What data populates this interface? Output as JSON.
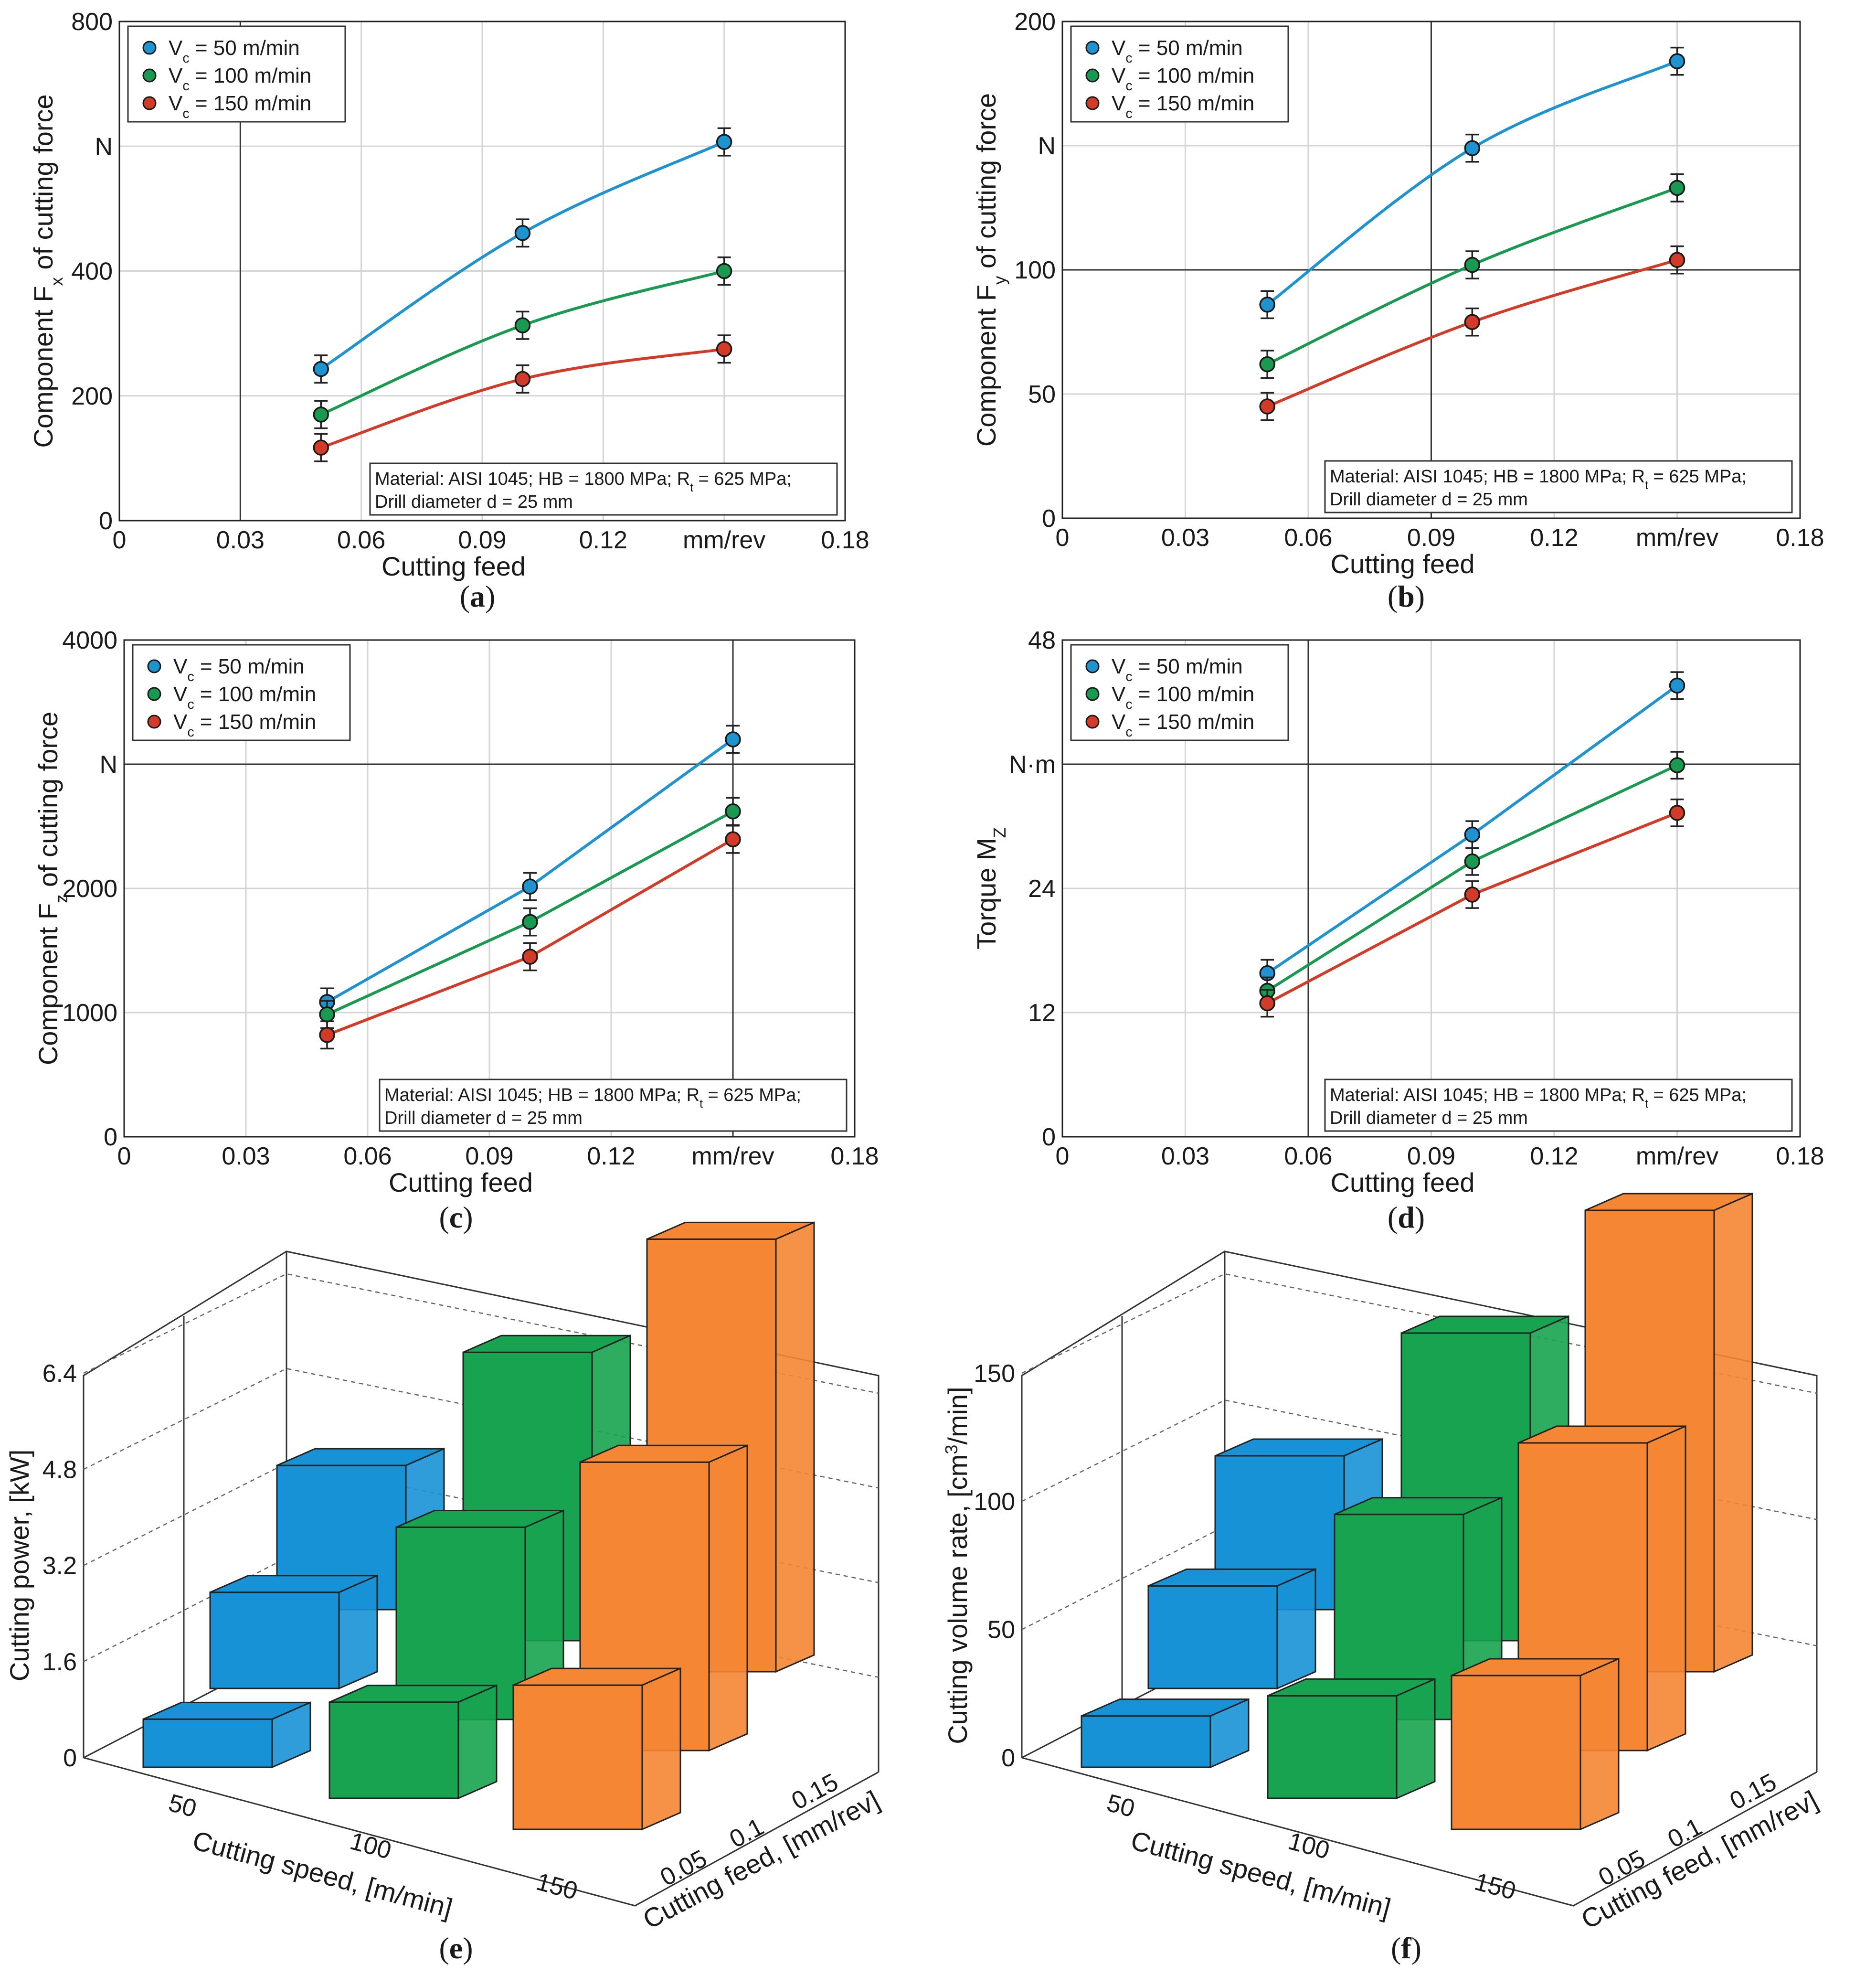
{
  "panels": [
    {
      "id": "a",
      "label": "a"
    },
    {
      "id": "b",
      "label": "b"
    },
    {
      "id": "c",
      "label": "c"
    },
    {
      "id": "d",
      "label": "d"
    },
    {
      "id": "e",
      "label": "e"
    },
    {
      "id": "f",
      "label": "f"
    }
  ],
  "legend": [
    "Vc = 50 m/min",
    "Vc = 100 m/min",
    "Vc = 150 m/min"
  ],
  "series_colors": [
    "#1f93cf",
    "#1a9a50",
    "#d23b27"
  ],
  "bar_colors": [
    "#1792d6",
    "#17a34f",
    "#f58634"
  ],
  "note_line1": "Material: AISI 1045; HB = 1800 MPa; Rt = 625 MPa;",
  "note_line2": "Drill diameter d = 25 mm",
  "chart_data": [
    {
      "panel": "a",
      "type": "line",
      "xlabel": "Cutting feed",
      "ylabel": "Component Fx of cutting force",
      "x_ticks": [
        "0",
        "0.03",
        "0.06",
        "0.09",
        "0.12",
        "mm/rev",
        "0.18"
      ],
      "y_ticks": [
        "0",
        "200",
        "400",
        "N",
        "800"
      ],
      "xlim": [
        0,
        0.18
      ],
      "ylim": [
        0,
        800
      ],
      "x": [
        0.05,
        0.1,
        0.15
      ],
      "series": [
        {
          "name": "Vc = 50 m/min",
          "values": [
            243,
            461,
            607
          ],
          "err": 22
        },
        {
          "name": "Vc = 100 m/min",
          "values": [
            170,
            313,
            400
          ],
          "err": 22
        },
        {
          "name": "Vc = 150 m/min",
          "values": [
            117,
            227,
            275
          ],
          "err": 22
        }
      ]
    },
    {
      "panel": "b",
      "type": "line",
      "xlabel": "Cutting feed",
      "ylabel": "Component Fy of cutting force",
      "x_ticks": [
        "0",
        "0.03",
        "0.06",
        "0.09",
        "0.12",
        "mm/rev",
        "0.18"
      ],
      "y_ticks": [
        "0",
        "50",
        "100",
        "N",
        "200"
      ],
      "xlim": [
        0,
        0.18
      ],
      "ylim": [
        0,
        200
      ],
      "x": [
        0.05,
        0.1,
        0.15
      ],
      "series": [
        {
          "name": "Vc = 50 m/min",
          "values": [
            86,
            149,
            184
          ],
          "err": 5.5
        },
        {
          "name": "Vc = 100 m/min",
          "values": [
            62,
            102,
            133
          ],
          "err": 5.5
        },
        {
          "name": "Vc = 150 m/min",
          "values": [
            45,
            79,
            104
          ],
          "err": 5.5
        }
      ]
    },
    {
      "panel": "c",
      "type": "line",
      "xlabel": "Cutting feed",
      "ylabel": "Component Fz of cutting force",
      "x_ticks": [
        "0",
        "0.03",
        "0.06",
        "0.09",
        "0.12",
        "mm/rev",
        "0.18"
      ],
      "y_ticks": [
        "0",
        "1000",
        "2000",
        "N",
        "4000"
      ],
      "xlim": [
        0,
        0.18
      ],
      "ylim": [
        0,
        4000
      ],
      "x": [
        0.05,
        0.1,
        0.15
      ],
      "series": [
        {
          "name": "Vc = 50 m/min",
          "values": [
            1085,
            2015,
            3200
          ],
          "err": 110
        },
        {
          "name": "Vc = 100 m/min",
          "values": [
            985,
            1730,
            2620
          ],
          "err": 110
        },
        {
          "name": "Vc = 150 m/min",
          "values": [
            820,
            1450,
            2395
          ],
          "err": 110
        }
      ]
    },
    {
      "panel": "d",
      "type": "line",
      "xlabel": "Cutting feed",
      "ylabel": "Torque Mz",
      "x_ticks": [
        "0",
        "0.03",
        "0.06",
        "0.09",
        "0.12",
        "mm/rev",
        "0.18"
      ],
      "y_ticks": [
        "0",
        "12",
        "24",
        "N·m",
        "48"
      ],
      "xlim": [
        0,
        0.18
      ],
      "ylim": [
        0,
        48
      ],
      "x": [
        0.05,
        0.1,
        0.15
      ],
      "series": [
        {
          "name": "Vc = 50 m/min",
          "values": [
            15.8,
            29.2,
            43.6
          ],
          "err": 1.3
        },
        {
          "name": "Vc = 100 m/min",
          "values": [
            14.1,
            26.6,
            35.9
          ],
          "err": 1.3
        },
        {
          "name": "Vc = 150 m/min",
          "values": [
            12.9,
            23.4,
            31.3
          ],
          "err": 1.3
        }
      ]
    },
    {
      "panel": "e",
      "type": "bar3d",
      "xlabel": "Cutting speed, [m/min]",
      "ylabel": "Cutting feed, [mm/rev]",
      "zlabel": "Cutting power, [kW]",
      "speed_ticks": [
        "50",
        "100",
        "150"
      ],
      "feed_ticks": [
        "0.05",
        "0.1",
        "0.15"
      ],
      "z_ticks": [
        "0",
        "1.6",
        "3.2",
        "4.8",
        "6.4"
      ],
      "zlim": [
        0,
        6.4
      ],
      "values": [
        [
          0.8,
          1.6,
          2.4
        ],
        [
          1.6,
          3.2,
          4.8
        ],
        [
          2.4,
          4.8,
          7.2
        ]
      ]
    },
    {
      "panel": "f",
      "type": "bar3d",
      "xlabel": "Cutting speed, [m/min]",
      "ylabel": "Cutting feed, [mm/rev]",
      "zlabel": "Cutting volume rate, [cm3/min]",
      "speed_ticks": [
        "50",
        "100",
        "150"
      ],
      "feed_ticks": [
        "0.05",
        "0.1",
        "0.15"
      ],
      "z_ticks": [
        "0",
        "50",
        "100",
        "150"
      ],
      "zlim": [
        0,
        150
      ],
      "values": [
        [
          20,
          40,
          60
        ],
        [
          40,
          80,
          120
        ],
        [
          60,
          120,
          180
        ]
      ]
    }
  ]
}
